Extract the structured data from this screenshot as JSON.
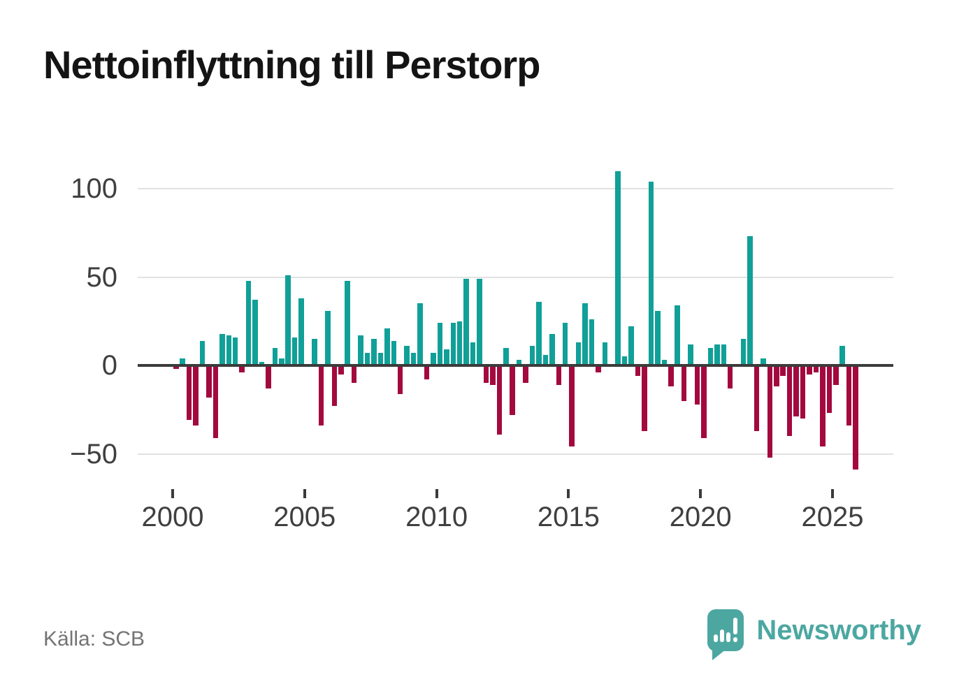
{
  "title": "Nettoinflyttning till Perstorp",
  "source": "Källa: SCB",
  "branding": {
    "logo_text": "Newsworthy",
    "logo_icon": "bar-chart-speech-bubble-icon"
  },
  "chart_data": {
    "type": "bar",
    "title": "Nettoinflyttning till Perstorp",
    "unit": "persons (net migration per quarter)",
    "frequency": "quarterly",
    "grid": "horizontal",
    "bar_sign_coloring": true,
    "colors": {
      "positive": "#10a098",
      "negative": "#a3093e",
      "zero_line": "#3b3b3b",
      "gridline": "#e1e1e1",
      "brand_teal": "#4ca7a1"
    },
    "ylim": [
      -65,
      115
    ],
    "y_ticks": [
      {
        "value": 100,
        "label": "100"
      },
      {
        "value": 50,
        "label": "50"
      },
      {
        "value": 0,
        "label": "0"
      },
      {
        "value": -50,
        "label": "−50"
      }
    ],
    "x_ticks": [
      {
        "year": 2000,
        "label": "2000"
      },
      {
        "year": 2005,
        "label": "2005"
      },
      {
        "year": 2010,
        "label": "2010"
      },
      {
        "year": 2015,
        "label": "2015"
      },
      {
        "year": 2020,
        "label": "2020"
      },
      {
        "year": 2025,
        "label": "2025"
      }
    ],
    "x": [
      "2000Q1",
      "2000Q2",
      "2000Q3",
      "2000Q4",
      "2001Q1",
      "2001Q2",
      "2001Q3",
      "2001Q4",
      "2002Q1",
      "2002Q2",
      "2002Q3",
      "2002Q4",
      "2003Q1",
      "2003Q2",
      "2003Q3",
      "2003Q4",
      "2004Q1",
      "2004Q2",
      "2004Q3",
      "2004Q4",
      "2005Q1",
      "2005Q2",
      "2005Q3",
      "2005Q4",
      "2006Q1",
      "2006Q2",
      "2006Q3",
      "2006Q4",
      "2007Q1",
      "2007Q2",
      "2007Q3",
      "2007Q4",
      "2008Q1",
      "2008Q2",
      "2008Q3",
      "2008Q4",
      "2009Q1",
      "2009Q2",
      "2009Q3",
      "2009Q4",
      "2010Q1",
      "2010Q2",
      "2010Q3",
      "2010Q4",
      "2011Q1",
      "2011Q2",
      "2011Q3",
      "2011Q4",
      "2012Q1",
      "2012Q2",
      "2012Q3",
      "2012Q4",
      "2013Q1",
      "2013Q2",
      "2013Q3",
      "2013Q4",
      "2014Q1",
      "2014Q2",
      "2014Q3",
      "2014Q4",
      "2015Q1",
      "2015Q2",
      "2015Q3",
      "2015Q4",
      "2016Q1",
      "2016Q2",
      "2016Q3",
      "2016Q4",
      "2017Q1",
      "2017Q2",
      "2017Q3",
      "2017Q4",
      "2018Q1",
      "2018Q2",
      "2018Q3",
      "2018Q4",
      "2019Q1",
      "2019Q2",
      "2019Q3",
      "2019Q4",
      "2020Q1",
      "2020Q2",
      "2020Q3",
      "2020Q4",
      "2021Q1",
      "2021Q2",
      "2021Q3",
      "2021Q4",
      "2022Q1",
      "2022Q2",
      "2022Q3",
      "2022Q4",
      "2023Q1",
      "2023Q2",
      "2023Q3",
      "2023Q4",
      "2024Q1",
      "2024Q2",
      "2024Q3",
      "2024Q4",
      "2025Q1",
      "2025Q2",
      "2025Q3",
      "2025Q4"
    ],
    "values": [
      -2,
      4,
      -31,
      -34,
      14,
      -18,
      -41,
      18,
      17,
      16,
      -4,
      48,
      37,
      2,
      -13,
      10,
      4,
      51,
      16,
      38,
      1,
      15,
      -34,
      31,
      -23,
      -5,
      48,
      -10,
      17,
      7,
      15,
      7,
      21,
      14,
      -16,
      11,
      7,
      35,
      -8,
      7,
      24,
      9,
      24,
      25,
      49,
      13,
      49,
      -10,
      -11,
      -39,
      10,
      -28,
      3,
      -10,
      11,
      36,
      6,
      18,
      -11,
      24,
      -46,
      13,
      35,
      26,
      -4,
      13,
      0,
      110,
      5,
      22,
      -6,
      -37,
      104,
      31,
      3,
      -12,
      34,
      -20,
      12,
      -22,
      -41,
      10,
      12,
      12,
      -13,
      1,
      15,
      73,
      -37,
      4,
      -52,
      -12,
      -6,
      -40,
      -29,
      -30,
      -5,
      -4,
      -46,
      -27,
      -11,
      11,
      -34,
      -59
    ]
  }
}
